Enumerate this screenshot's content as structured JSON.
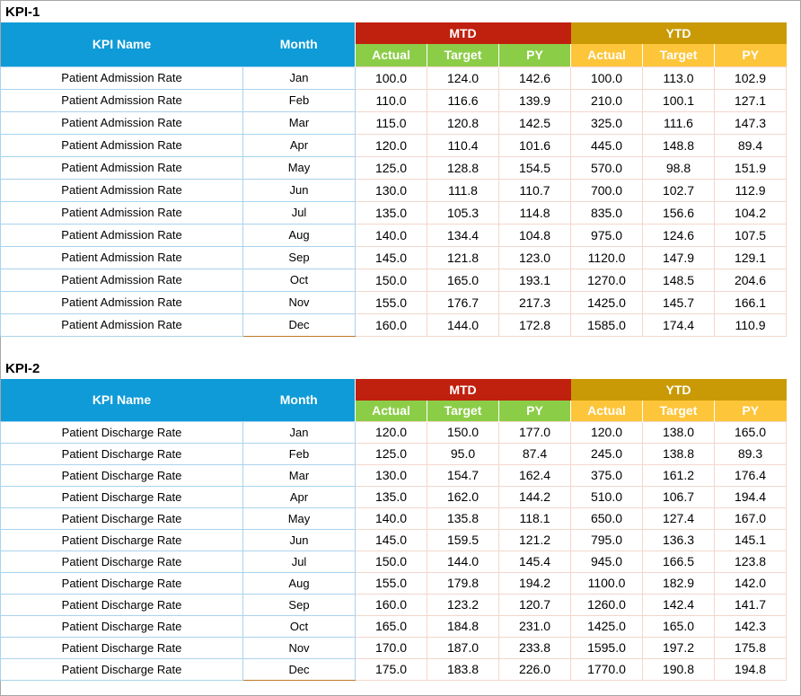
{
  "kpis": [
    {
      "title": "KPI-1",
      "headers": {
        "kpi_name": "KPI Name",
        "month": "Month",
        "mtd": "MTD",
        "ytd": "YTD",
        "sub": [
          "Actual",
          "Target",
          "PY",
          "Actual",
          "Target",
          "PY"
        ]
      },
      "rows": [
        {
          "name": "Patient Admission Rate",
          "month": "Jan",
          "vals": [
            "100.0",
            "124.0",
            "142.6",
            "100.0",
            "113.0",
            "102.9"
          ]
        },
        {
          "name": "Patient Admission Rate",
          "month": "Feb",
          "vals": [
            "110.0",
            "116.6",
            "139.9",
            "210.0",
            "100.1",
            "127.1"
          ]
        },
        {
          "name": "Patient Admission Rate",
          "month": "Mar",
          "vals": [
            "115.0",
            "120.8",
            "142.5",
            "325.0",
            "111.6",
            "147.3"
          ]
        },
        {
          "name": "Patient Admission Rate",
          "month": "Apr",
          "vals": [
            "120.0",
            "110.4",
            "101.6",
            "445.0",
            "148.8",
            "89.4"
          ]
        },
        {
          "name": "Patient Admission Rate",
          "month": "May",
          "vals": [
            "125.0",
            "128.8",
            "154.5",
            "570.0",
            "98.8",
            "151.9"
          ]
        },
        {
          "name": "Patient Admission Rate",
          "month": "Jun",
          "vals": [
            "130.0",
            "111.8",
            "110.7",
            "700.0",
            "102.7",
            "112.9"
          ]
        },
        {
          "name": "Patient Admission Rate",
          "month": "Jul",
          "vals": [
            "135.0",
            "105.3",
            "114.8",
            "835.0",
            "156.6",
            "104.2"
          ]
        },
        {
          "name": "Patient Admission Rate",
          "month": "Aug",
          "vals": [
            "140.0",
            "134.4",
            "104.8",
            "975.0",
            "124.6",
            "107.5"
          ]
        },
        {
          "name": "Patient Admission Rate",
          "month": "Sep",
          "vals": [
            "145.0",
            "121.8",
            "123.0",
            "1120.0",
            "147.9",
            "129.1"
          ]
        },
        {
          "name": "Patient Admission Rate",
          "month": "Oct",
          "vals": [
            "150.0",
            "165.0",
            "193.1",
            "1270.0",
            "148.5",
            "204.6"
          ]
        },
        {
          "name": "Patient Admission Rate",
          "month": "Nov",
          "vals": [
            "155.0",
            "176.7",
            "217.3",
            "1425.0",
            "145.7",
            "166.1"
          ]
        },
        {
          "name": "Patient Admission Rate",
          "month": "Dec",
          "vals": [
            "160.0",
            "144.0",
            "172.8",
            "1585.0",
            "174.4",
            "110.9"
          ]
        }
      ]
    },
    {
      "title": "KPI-2",
      "headers": {
        "kpi_name": "KPI Name",
        "month": "Month",
        "mtd": "MTD",
        "ytd": "YTD",
        "sub": [
          "Actual",
          "Target",
          "PY",
          "Actual",
          "Target",
          "PY"
        ]
      },
      "rows": [
        {
          "name": "Patient Discharge Rate",
          "month": "Jan",
          "vals": [
            "120.0",
            "150.0",
            "177.0",
            "120.0",
            "138.0",
            "165.0"
          ]
        },
        {
          "name": "Patient Discharge Rate",
          "month": "Feb",
          "vals": [
            "125.0",
            "95.0",
            "87.4",
            "245.0",
            "138.8",
            "89.3"
          ]
        },
        {
          "name": "Patient Discharge Rate",
          "month": "Mar",
          "vals": [
            "130.0",
            "154.7",
            "162.4",
            "375.0",
            "161.2",
            "176.4"
          ]
        },
        {
          "name": "Patient Discharge Rate",
          "month": "Apr",
          "vals": [
            "135.0",
            "162.0",
            "144.2",
            "510.0",
            "106.7",
            "194.4"
          ]
        },
        {
          "name": "Patient Discharge Rate",
          "month": "May",
          "vals": [
            "140.0",
            "135.8",
            "118.1",
            "650.0",
            "127.4",
            "167.0"
          ]
        },
        {
          "name": "Patient Discharge Rate",
          "month": "Jun",
          "vals": [
            "145.0",
            "159.5",
            "121.2",
            "795.0",
            "136.3",
            "145.1"
          ]
        },
        {
          "name": "Patient Discharge Rate",
          "month": "Jul",
          "vals": [
            "150.0",
            "144.0",
            "145.4",
            "945.0",
            "166.5",
            "123.8"
          ]
        },
        {
          "name": "Patient Discharge Rate",
          "month": "Aug",
          "vals": [
            "155.0",
            "179.8",
            "194.2",
            "1100.0",
            "182.9",
            "142.0"
          ]
        },
        {
          "name": "Patient Discharge Rate",
          "month": "Sep",
          "vals": [
            "160.0",
            "123.2",
            "120.7",
            "1260.0",
            "142.4",
            "141.7"
          ]
        },
        {
          "name": "Patient Discharge Rate",
          "month": "Oct",
          "vals": [
            "165.0",
            "184.8",
            "231.0",
            "1425.0",
            "165.0",
            "142.3"
          ]
        },
        {
          "name": "Patient Discharge Rate",
          "month": "Nov",
          "vals": [
            "170.0",
            "187.0",
            "233.8",
            "1595.0",
            "197.2",
            "175.8"
          ]
        },
        {
          "name": "Patient Discharge Rate",
          "month": "Dec",
          "vals": [
            "175.0",
            "183.8",
            "226.0",
            "1770.0",
            "190.8",
            "194.8"
          ]
        }
      ]
    }
  ]
}
